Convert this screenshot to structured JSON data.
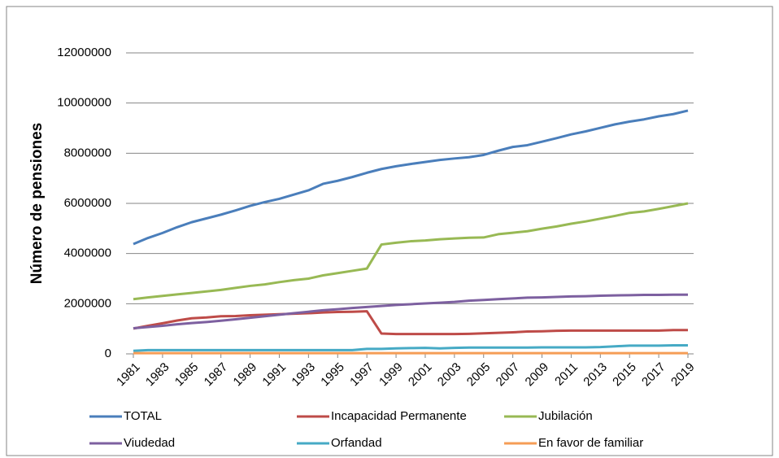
{
  "chart_data": {
    "type": "line",
    "y_label": "Número de pensiones",
    "x": [
      1981,
      1982,
      1983,
      1984,
      1985,
      1986,
      1987,
      1988,
      1989,
      1990,
      1991,
      1992,
      1993,
      1994,
      1995,
      1996,
      1997,
      1998,
      1999,
      2000,
      2001,
      2002,
      2003,
      2004,
      2005,
      2006,
      2007,
      2008,
      2009,
      2010,
      2011,
      2012,
      2013,
      2014,
      2015,
      2016,
      2017,
      2018,
      2019
    ],
    "xlim": [
      1981,
      2019
    ],
    "xticks": [
      1981,
      1983,
      1985,
      1987,
      1989,
      1991,
      1993,
      1995,
      1997,
      1999,
      2001,
      2003,
      2005,
      2007,
      2009,
      2011,
      2013,
      2015,
      2017,
      2019
    ],
    "ylim": [
      0,
      12000000
    ],
    "yticks": [
      0,
      2000000,
      4000000,
      6000000,
      8000000,
      10000000,
      12000000
    ],
    "grid": true,
    "legend": "bottom",
    "series": [
      {
        "name": "TOTAL",
        "color": "#4a7ebb",
        "values": [
          4380000,
          4620000,
          4820000,
          5050000,
          5250000,
          5400000,
          5550000,
          5720000,
          5900000,
          6050000,
          6180000,
          6350000,
          6520000,
          6780000,
          6900000,
          7050000,
          7220000,
          7370000,
          7480000,
          7570000,
          7650000,
          7730000,
          7790000,
          7840000,
          7930000,
          8100000,
          8250000,
          8320000,
          8460000,
          8600000,
          8750000,
          8870000,
          9010000,
          9150000,
          9260000,
          9350000,
          9470000,
          9560000,
          9700000
        ]
      },
      {
        "name": "Incapacidad Permanente",
        "color": "#be4b48",
        "values": [
          1010000,
          1120000,
          1220000,
          1330000,
          1420000,
          1450000,
          1500000,
          1510000,
          1540000,
          1560000,
          1580000,
          1600000,
          1620000,
          1650000,
          1670000,
          1680000,
          1700000,
          810000,
          790000,
          790000,
          790000,
          790000,
          790000,
          800000,
          820000,
          840000,
          860000,
          890000,
          900000,
          920000,
          930000,
          930000,
          930000,
          930000,
          930000,
          930000,
          930000,
          950000,
          950000
        ]
      },
      {
        "name": "Jubilación",
        "color": "#98b954",
        "values": [
          2180000,
          2250000,
          2310000,
          2370000,
          2430000,
          2490000,
          2550000,
          2630000,
          2710000,
          2770000,
          2860000,
          2940000,
          3000000,
          3130000,
          3220000,
          3310000,
          3400000,
          4360000,
          4430000,
          4490000,
          4520000,
          4570000,
          4600000,
          4630000,
          4640000,
          4770000,
          4830000,
          4890000,
          4990000,
          5080000,
          5190000,
          5280000,
          5390000,
          5500000,
          5620000,
          5680000,
          5780000,
          5890000,
          6000000
        ]
      },
      {
        "name": "Viudedad",
        "color": "#7d60a0",
        "values": [
          1020000,
          1070000,
          1120000,
          1180000,
          1230000,
          1270000,
          1320000,
          1380000,
          1440000,
          1500000,
          1560000,
          1620000,
          1680000,
          1740000,
          1780000,
          1830000,
          1870000,
          1910000,
          1950000,
          1980000,
          2010000,
          2040000,
          2070000,
          2120000,
          2150000,
          2180000,
          2210000,
          2240000,
          2250000,
          2270000,
          2290000,
          2300000,
          2320000,
          2330000,
          2340000,
          2350000,
          2350000,
          2360000,
          2360000
        ]
      },
      {
        "name": "Orfandad",
        "color": "#46aac5",
        "values": [
          120000,
          150000,
          150000,
          150000,
          150000,
          150000,
          150000,
          150000,
          150000,
          150000,
          150000,
          150000,
          150000,
          150000,
          150000,
          150000,
          200000,
          200000,
          220000,
          230000,
          240000,
          220000,
          240000,
          250000,
          250000,
          250000,
          250000,
          250000,
          260000,
          260000,
          260000,
          260000,
          270000,
          300000,
          330000,
          330000,
          330000,
          340000,
          340000
        ]
      },
      {
        "name": "En favor de familiar",
        "color": "#f59d56",
        "values": [
          30000,
          30000,
          30000,
          30000,
          30000,
          30000,
          30000,
          30000,
          30000,
          30000,
          30000,
          30000,
          30000,
          30000,
          30000,
          30000,
          30000,
          30000,
          30000,
          30000,
          30000,
          30000,
          30000,
          30000,
          30000,
          30000,
          30000,
          30000,
          30000,
          30000,
          30000,
          30000,
          30000,
          30000,
          30000,
          30000,
          30000,
          30000,
          30000
        ]
      }
    ]
  }
}
